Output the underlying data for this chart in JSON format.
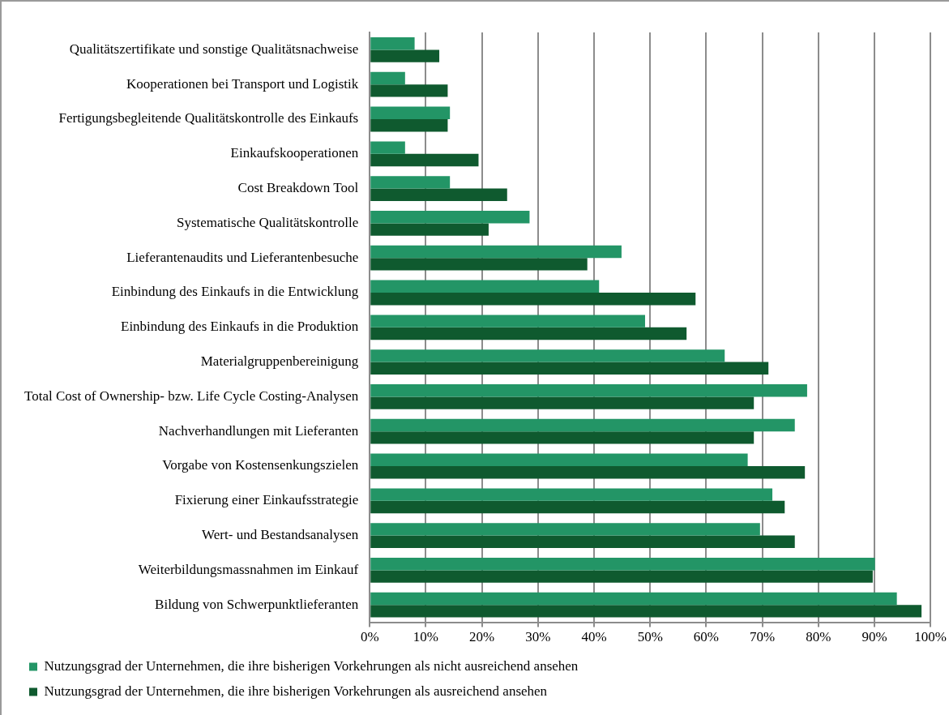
{
  "chart_data": {
    "type": "bar",
    "orientation": "horizontal",
    "categories": [
      "Qualitätszertifikate und sonstige Qualitätsnachweise",
      "Kooperationen bei Transport und Logistik",
      "Fertigungsbegleitende Qualitätskontrolle des Einkaufs",
      "Einkaufskooperationen",
      "Cost Breakdown Tool",
      "Systematische Qualitätskontrolle",
      "Lieferantenaudits und Lieferantenbesuche",
      "Einbindung des Einkaufs in die Entwicklung",
      "Einbindung des Einkaufs in die Produktion",
      "Materialgruppenbereinigung",
      "Total Cost of Ownership- bzw. Life Cycle Costing-Analysen",
      "Nachverhandlungen mit Lieferanten",
      "Vorgabe von Kostensenkungszielen",
      "Fixierung einer Einkaufsstrategie",
      "Wert- und Bestandsanalysen",
      "Weiterbildungsmassnahmen im Einkauf",
      "Bildung von Schwerpunktlieferanten"
    ],
    "series": [
      {
        "name": "Nutzungsgrad der Unternehmen, die ihre bisherigen Vorkehrungen als nicht ausreichend ansehen",
        "color": "#239566",
        "values": [
          8,
          6.3,
          14.3,
          6.3,
          14.3,
          28.5,
          44.9,
          40.9,
          49.1,
          63.3,
          78,
          75.8,
          67.4,
          71.8,
          69.6,
          90.1,
          94
        ]
      },
      {
        "name": "Nutzungsgrad der Unternehmen, die ihre bisherigen Vorkehrungen als ausreichend ansehen",
        "color": "#0f5a2f",
        "values": [
          12.4,
          13.9,
          13.9,
          19.4,
          24.5,
          21.2,
          38.8,
          58.1,
          56.5,
          71.1,
          68.5,
          68.5,
          77.6,
          74,
          75.8,
          89.7,
          98.4
        ]
      }
    ],
    "xlim": [
      0,
      100
    ],
    "xticks": [
      {
        "value": 0,
        "label": "0%"
      },
      {
        "value": 10,
        "label": "10%"
      },
      {
        "value": 20,
        "label": "20%"
      },
      {
        "value": 30,
        "label": "30%"
      },
      {
        "value": 40,
        "label": "40%"
      },
      {
        "value": 50,
        "label": "50%"
      },
      {
        "value": 60,
        "label": "60%"
      },
      {
        "value": 70,
        "label": "70%"
      },
      {
        "value": 80,
        "label": "80%"
      },
      {
        "value": 90,
        "label": "90%"
      },
      {
        "value": 100,
        "label": "100%"
      }
    ],
    "grid": "x",
    "legend": "bottom"
  }
}
